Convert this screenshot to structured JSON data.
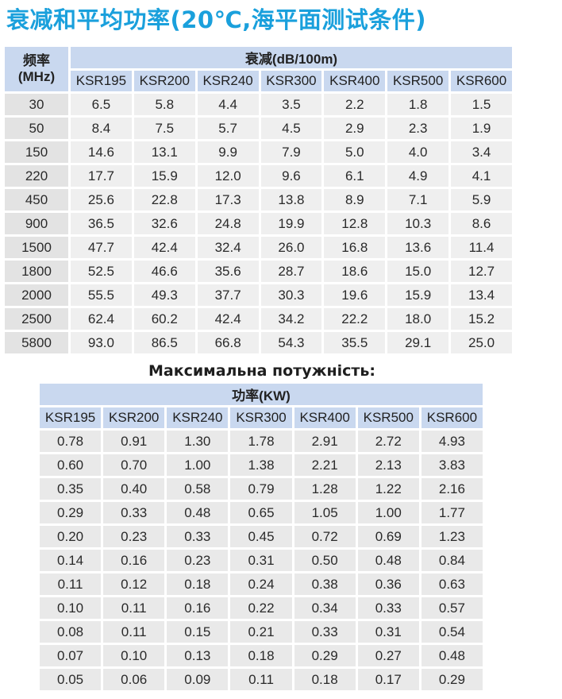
{
  "title": "衰减和平均功率(20℃,海平面测试条件)",
  "attenuation_table": {
    "freq_header": "频率 (MHz)",
    "group_header": "衰减(dB/100m)",
    "models": [
      "KSR195",
      "KSR200",
      "KSR240",
      "KSR300",
      "KSR400",
      "KSR500",
      "KSR600"
    ],
    "rows": [
      {
        "freq": "30",
        "values": [
          "6.5",
          "5.8",
          "4.4",
          "3.5",
          "2.2",
          "1.8",
          "1.5"
        ]
      },
      {
        "freq": "50",
        "values": [
          "8.4",
          "7.5",
          "5.7",
          "4.5",
          "2.9",
          "2.3",
          "1.9"
        ]
      },
      {
        "freq": "150",
        "values": [
          "14.6",
          "13.1",
          "9.9",
          "7.9",
          "5.0",
          "4.0",
          "3.4"
        ]
      },
      {
        "freq": "220",
        "values": [
          "17.7",
          "15.9",
          "12.0",
          "9.6",
          "6.1",
          "4.9",
          "4.1"
        ]
      },
      {
        "freq": "450",
        "values": [
          "25.6",
          "22.8",
          "17.3",
          "13.8",
          "8.9",
          "7.1",
          "5.9"
        ]
      },
      {
        "freq": "900",
        "values": [
          "36.5",
          "32.6",
          "24.8",
          "19.9",
          "12.8",
          "10.3",
          "8.6"
        ]
      },
      {
        "freq": "1500",
        "values": [
          "47.7",
          "42.4",
          "32.4",
          "26.0",
          "16.8",
          "13.6",
          "11.4"
        ]
      },
      {
        "freq": "1800",
        "values": [
          "52.5",
          "46.6",
          "35.6",
          "28.7",
          "18.6",
          "15.0",
          "12.7"
        ]
      },
      {
        "freq": "2000",
        "values": [
          "55.5",
          "49.3",
          "37.7",
          "30.3",
          "19.6",
          "15.9",
          "13.4"
        ]
      },
      {
        "freq": "2500",
        "values": [
          "62.4",
          "60.2",
          "42.4",
          "34.2",
          "22.2",
          "18.0",
          "15.2"
        ]
      },
      {
        "freq": "5800",
        "values": [
          "93.0",
          "86.5",
          "66.8",
          "54.3",
          "35.5",
          "29.1",
          "25.0"
        ]
      }
    ]
  },
  "power_section_title": "Максимальна потужність:",
  "power_table": {
    "group_header": "功率(KW)",
    "models": [
      "KSR195",
      "KSR200",
      "KSR240",
      "KSR300",
      "KSR400",
      "KSR500",
      "KSR600"
    ],
    "rows": [
      [
        "0.78",
        "0.91",
        "1.30",
        "1.78",
        "2.91",
        "2.72",
        "4.93"
      ],
      [
        "0.60",
        "0.70",
        "1.00",
        "1.38",
        "2.21",
        "2.13",
        "3.83"
      ],
      [
        "0.35",
        "0.40",
        "0.58",
        "0.79",
        "1.28",
        "1.22",
        "2.16"
      ],
      [
        "0.29",
        "0.33",
        "0.48",
        "0.65",
        "1.05",
        "1.00",
        "1.77"
      ],
      [
        "0.20",
        "0.23",
        "0.33",
        "0.45",
        "0.72",
        "0.69",
        "1.23"
      ],
      [
        "0.14",
        "0.16",
        "0.23",
        "0.31",
        "0.50",
        "0.48",
        "0.84"
      ],
      [
        "0.11",
        "0.12",
        "0.18",
        "0.24",
        "0.38",
        "0.36",
        "0.63"
      ],
      [
        "0.10",
        "0.11",
        "0.16",
        "0.22",
        "0.34",
        "0.33",
        "0.57"
      ],
      [
        "0.08",
        "0.11",
        "0.15",
        "0.21",
        "0.33",
        "0.31",
        "0.54"
      ],
      [
        "0.07",
        "0.10",
        "0.13",
        "0.18",
        "0.29",
        "0.27",
        "0.48"
      ],
      [
        "0.05",
        "0.06",
        "0.09",
        "0.11",
        "0.18",
        "0.17",
        "0.29"
      ]
    ]
  },
  "colors": {
    "title": "#1aa0dc",
    "header_bg": "#c9d8ef",
    "cell_bg": "#efefef"
  }
}
